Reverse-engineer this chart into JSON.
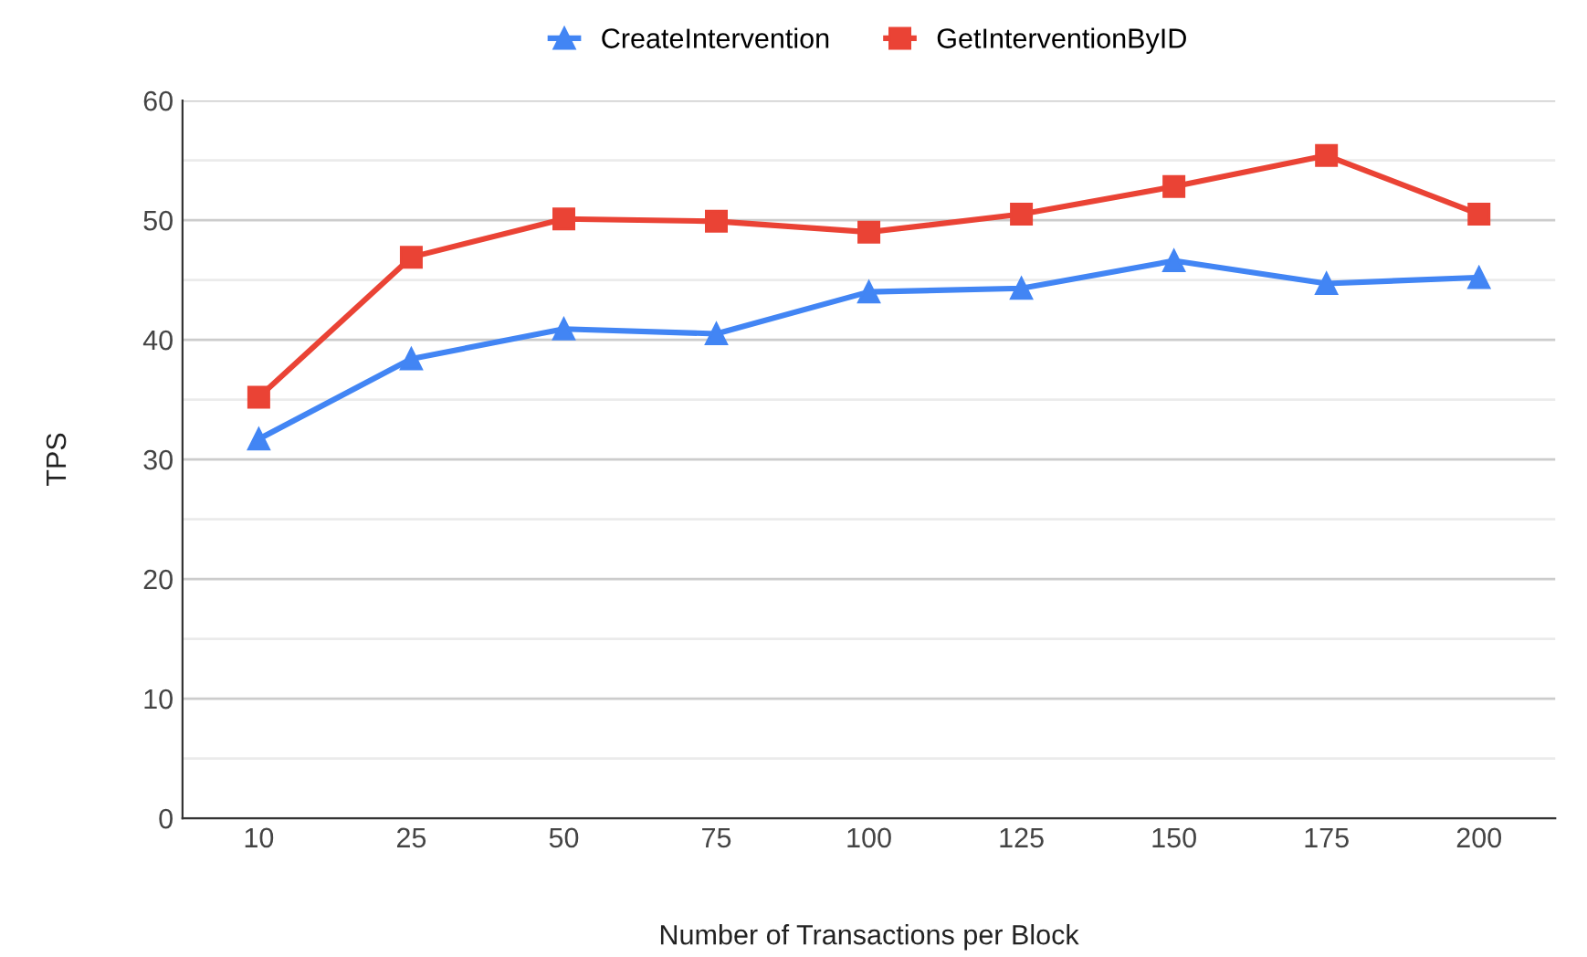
{
  "chart_data": {
    "type": "line",
    "xlabel": "Number of Transactions per Block",
    "ylabel": "TPS",
    "categories": [
      "10",
      "25",
      "50",
      "75",
      "100",
      "125",
      "150",
      "175",
      "200"
    ],
    "series": [
      {
        "name": "CreateIntervention",
        "color": "#4285f4",
        "marker": "triangle",
        "values": [
          31.7,
          38.4,
          40.9,
          40.5,
          44.0,
          44.3,
          46.6,
          44.7,
          45.2
        ]
      },
      {
        "name": "GetInterventionByID",
        "color": "#ea4335",
        "marker": "square",
        "values": [
          35.2,
          46.9,
          50.1,
          49.9,
          49.0,
          50.5,
          52.8,
          55.4,
          50.5
        ]
      }
    ],
    "ylim": [
      0,
      60
    ],
    "yticks": [
      0,
      {
        "value": 5,
        "label": null
      },
      10,
      {
        "value": 15,
        "label": null
      },
      20,
      {
        "value": 25,
        "label": null
      },
      30,
      {
        "value": 35,
        "label": null
      },
      40,
      {
        "value": 45,
        "label": null
      },
      50,
      {
        "value": 55,
        "label": null
      },
      60
    ],
    "grid": "y",
    "legend": "top",
    "line_style": "solid"
  }
}
